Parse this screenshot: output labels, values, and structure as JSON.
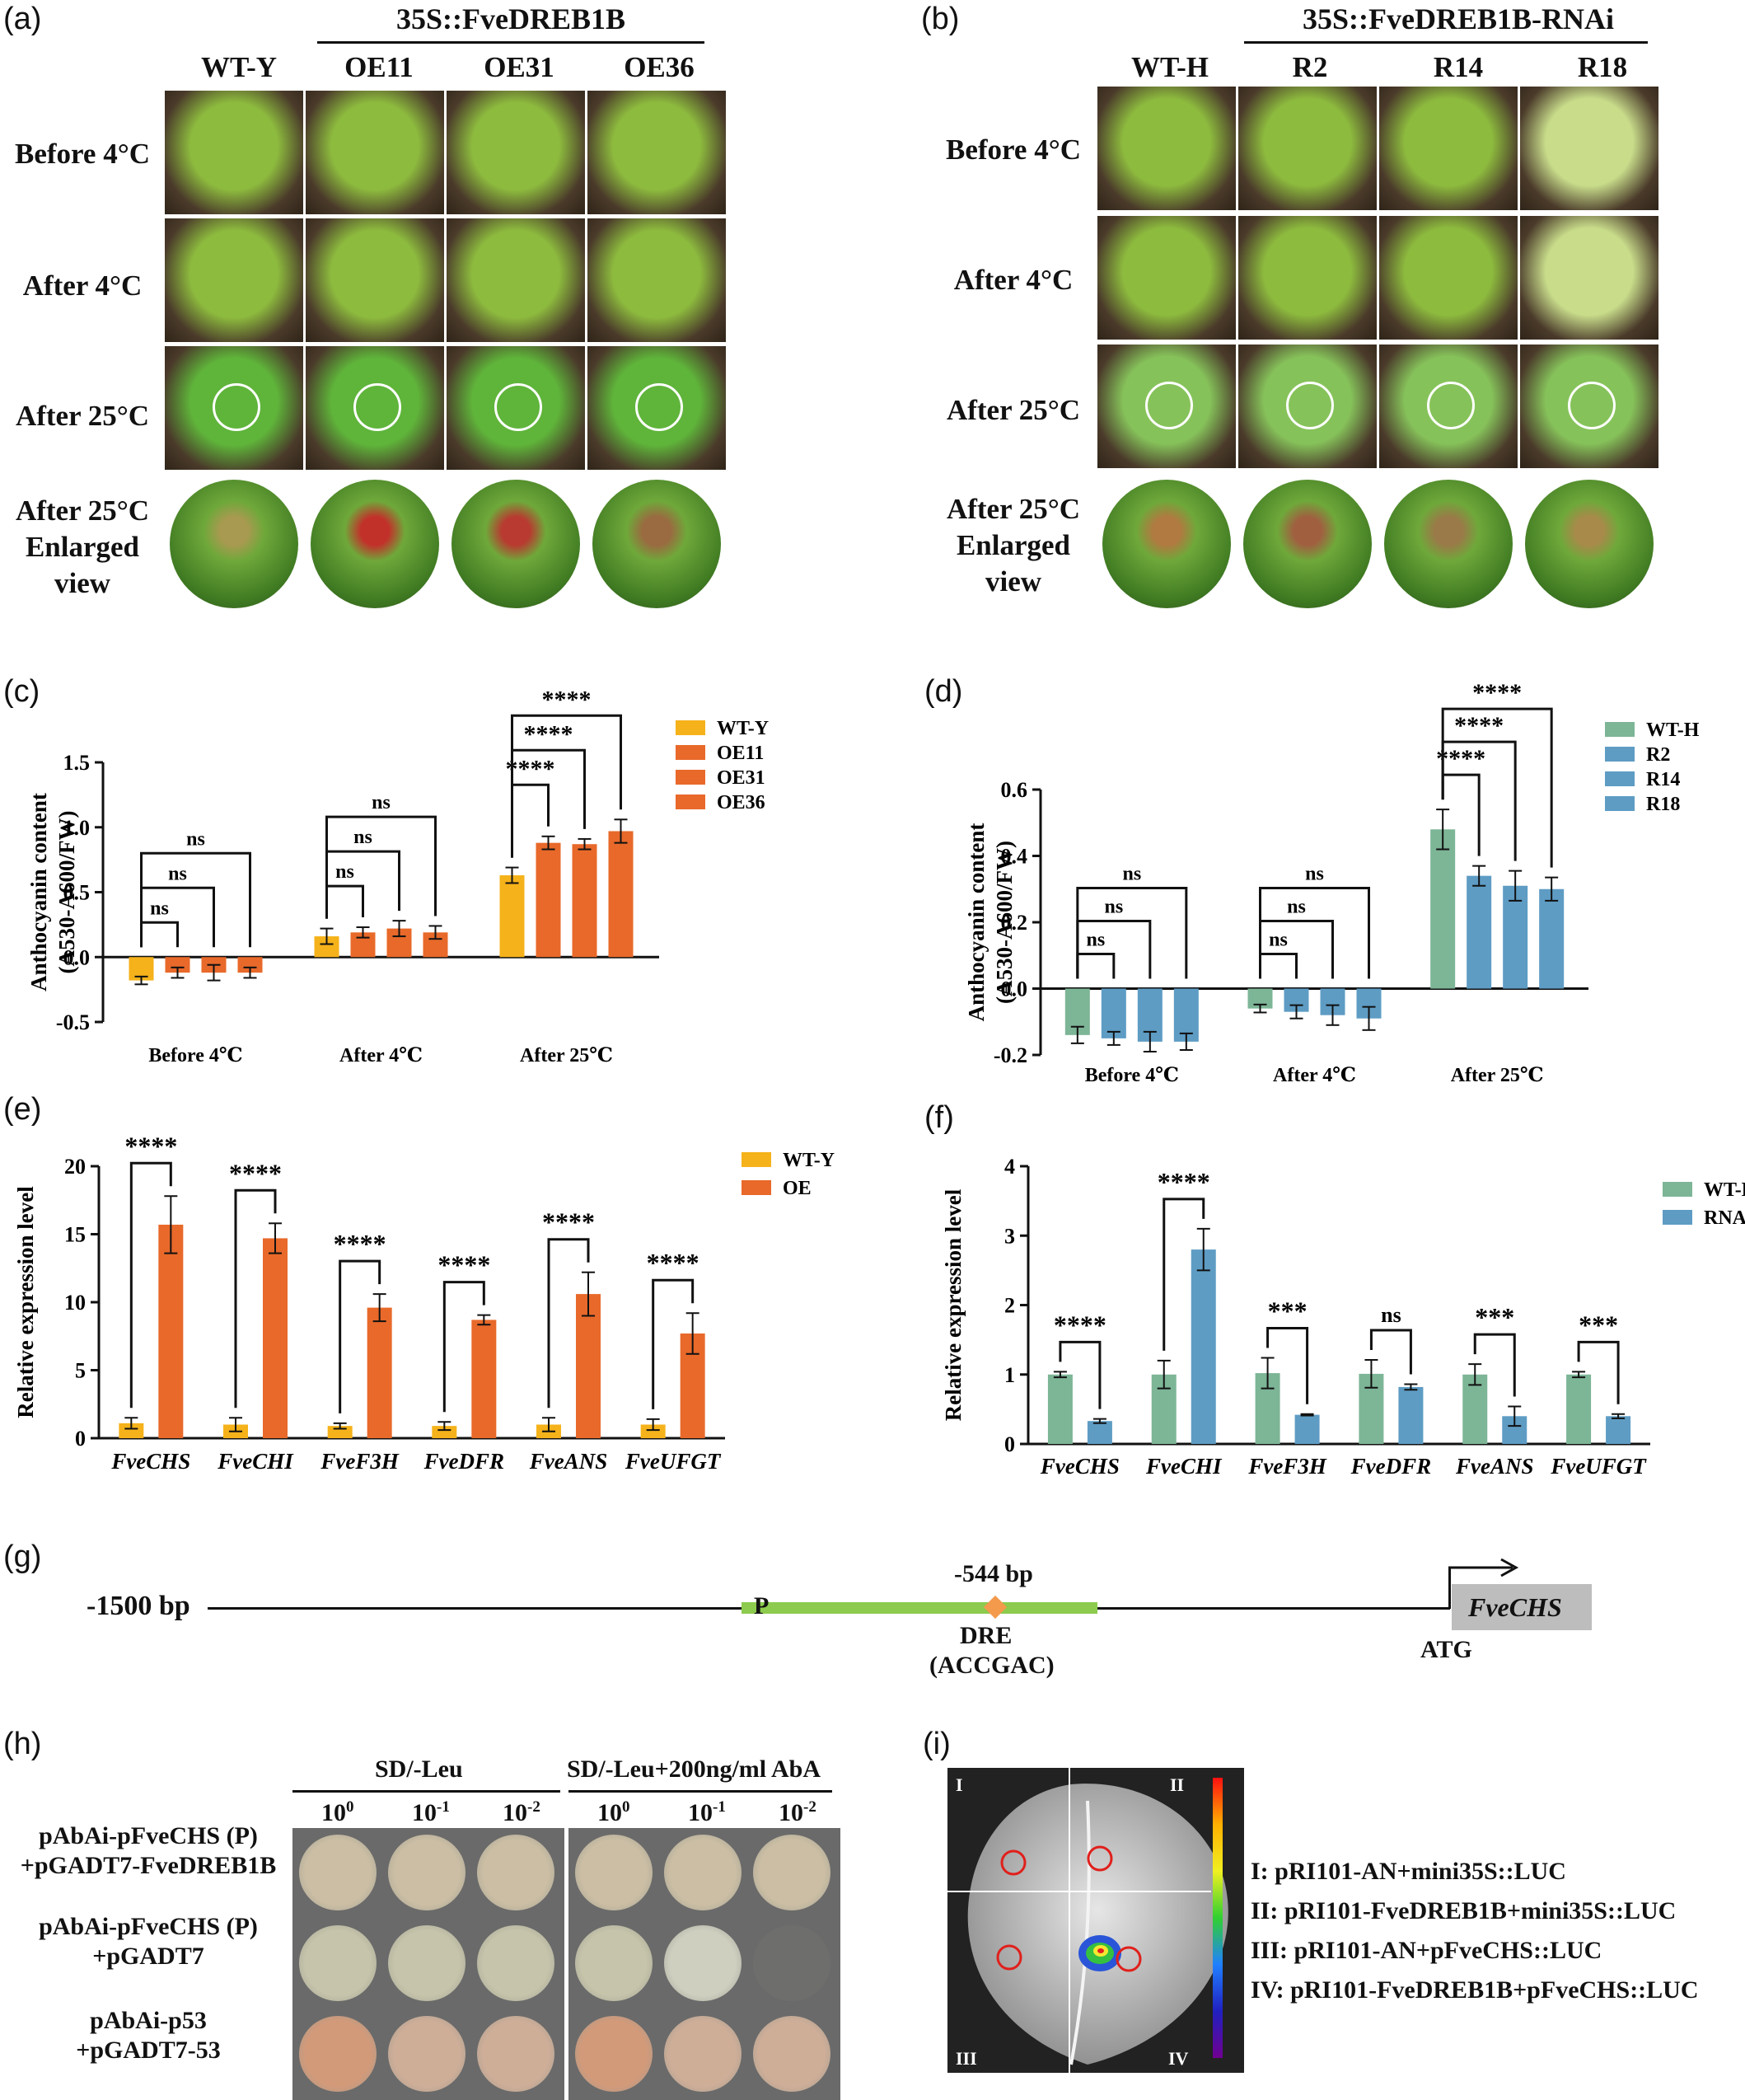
{
  "panels": {
    "a": {
      "label": "(a)",
      "construct": "35S::FveDREB1B",
      "columns": [
        "WT-Y",
        "OE11",
        "OE31",
        "OE36"
      ],
      "rows": [
        "Before 4°C",
        "After 4°C",
        "After 25°C",
        "After 25°C Enlarged view"
      ]
    },
    "b": {
      "label": "(b)",
      "construct": "35S::FveDREB1B-RNAi",
      "columns": [
        "WT-H",
        "R2",
        "R14",
        "R18"
      ],
      "rows": [
        "Before 4°C",
        "After 4°C",
        "After 25°C",
        "After 25°C Enlarged view"
      ]
    },
    "c": {
      "label": "(c)"
    },
    "d": {
      "label": "(d)"
    },
    "e": {
      "label": "(e)"
    },
    "f": {
      "label": "(f)"
    },
    "g": {
      "label": "(g)",
      "left_label": "-1500 bp",
      "p_label": "P",
      "site_label": "-544 bp",
      "dre": "DRE",
      "dre_seq": "(ACCGAC)",
      "atg": "ATG",
      "gene": "FveCHS"
    },
    "h": {
      "label": "(h)",
      "media": [
        "SD/-Leu",
        "SD/-Leu+200ng/ml AbA"
      ],
      "dilutions": [
        "10",
        "10",
        "10"
      ],
      "dilution_exp": [
        "0",
        "-1",
        "-2"
      ],
      "rows": [
        [
          "pAbAi-pFveCHS (P)",
          "+pGADT7-FveDREB1B"
        ],
        [
          "pAbAi-pFveCHS (P)",
          "+pGADT7"
        ],
        [
          "pAbAi-p53",
          "+pGADT7-53"
        ]
      ]
    },
    "i": {
      "label": "(i)",
      "quadrants": [
        "I",
        "II",
        "III",
        "IV"
      ],
      "legend": [
        "I: pRI101-AN+mini35S::LUC",
        "II: pRI101-FveDREB1B+mini35S::LUC",
        "III: pRI101-AN+pFveCHS::LUC",
        "IV: pRI101-FveDREB1B+pFveCHS::LUC"
      ]
    }
  },
  "colors": {
    "wt_y": "#F5B21A",
    "oe": "#E8692A",
    "wt_h": "#7DB597",
    "rnai": "#5E9CC4",
    "leaf": "#7DB83A",
    "green_bar": "#8CCB4E"
  },
  "chart_data": [
    {
      "id": "c",
      "type": "bar",
      "ylabel": "Anthocyanin content (A530-A600/FW)",
      "ylim": [
        -0.5,
        1.5
      ],
      "yticks": [
        "-0.5",
        "0.0",
        "0.5",
        "1.0",
        "1.5"
      ],
      "categories": [
        "Before 4℃",
        "After 4℃",
        "After 25℃"
      ],
      "series": [
        {
          "name": "WT-Y",
          "values": [
            -0.18,
            0.16,
            0.63
          ],
          "errors": [
            0.03,
            0.06,
            0.06
          ]
        },
        {
          "name": "OE11",
          "values": [
            -0.12,
            0.19,
            0.88
          ],
          "errors": [
            0.04,
            0.04,
            0.05
          ]
        },
        {
          "name": "OE31",
          "values": [
            -0.12,
            0.22,
            0.87
          ],
          "errors": [
            0.06,
            0.06,
            0.04
          ]
        },
        {
          "name": "OE36",
          "values": [
            -0.12,
            0.19,
            0.97
          ],
          "errors": [
            0.04,
            0.05,
            0.09
          ]
        }
      ],
      "sig": [
        [
          "ns",
          "ns",
          "ns"
        ],
        [
          "ns",
          "ns",
          "ns"
        ],
        [
          "****",
          "****",
          "****"
        ]
      ]
    },
    {
      "id": "d",
      "type": "bar",
      "ylabel": "Anthocyanin content (A530-A600/FW)",
      "ylim": [
        -0.2,
        0.6
      ],
      "yticks": [
        "-0.2",
        "0.0",
        "0.2",
        "0.4",
        "0.6"
      ],
      "categories": [
        "Before 4℃",
        "After 4℃",
        "After 25℃"
      ],
      "series": [
        {
          "name": "WT-H",
          "values": [
            -0.14,
            -0.06,
            0.48
          ],
          "errors": [
            0.025,
            0.012,
            0.06
          ]
        },
        {
          "name": "R2",
          "values": [
            -0.15,
            -0.07,
            0.34
          ],
          "errors": [
            0.02,
            0.02,
            0.03
          ]
        },
        {
          "name": "R14",
          "values": [
            -0.16,
            -0.08,
            0.31
          ],
          "errors": [
            0.03,
            0.03,
            0.045
          ]
        },
        {
          "name": "R18",
          "values": [
            -0.16,
            -0.09,
            0.3
          ],
          "errors": [
            0.025,
            0.035,
            0.035
          ]
        }
      ],
      "sig": [
        [
          "ns",
          "ns",
          "ns"
        ],
        [
          "ns",
          "ns",
          "ns"
        ],
        [
          "****",
          "****",
          "****"
        ]
      ]
    },
    {
      "id": "e",
      "type": "bar",
      "ylabel": "Relative expression level",
      "ylim": [
        0,
        20
      ],
      "yticks": [
        "0",
        "5",
        "10",
        "15",
        "20"
      ],
      "categories": [
        "FveCHS",
        "FveCHI",
        "FveF3H",
        "FveDFR",
        "FveANS",
        "FveUFGT"
      ],
      "series": [
        {
          "name": "WT-Y",
          "values": [
            1.1,
            1.0,
            0.9,
            0.9,
            1.0,
            1.0
          ],
          "errors": [
            0.4,
            0.5,
            0.2,
            0.3,
            0.5,
            0.4
          ]
        },
        {
          "name": "OE",
          "values": [
            15.7,
            14.7,
            9.6,
            8.7,
            10.6,
            7.7
          ],
          "errors": [
            2.1,
            1.1,
            1.0,
            0.35,
            1.6,
            1.5
          ]
        }
      ],
      "sig": [
        "****",
        "****",
        "****",
        "****",
        "****",
        "****"
      ]
    },
    {
      "id": "f",
      "type": "bar",
      "ylabel": "Relative expression level",
      "ylim": [
        0,
        4
      ],
      "yticks": [
        "0",
        "1",
        "2",
        "3",
        "4"
      ],
      "categories": [
        "FveCHS",
        "FveCHI",
        "FveF3H",
        "FveDFR",
        "FveANS",
        "FveUFGT"
      ],
      "series": [
        {
          "name": "WT-H",
          "values": [
            1.0,
            1.0,
            1.02,
            1.01,
            1.0,
            1.0
          ],
          "errors": [
            0.04,
            0.2,
            0.22,
            0.2,
            0.15,
            0.04
          ]
        },
        {
          "name": "RNAi",
          "values": [
            0.33,
            2.8,
            0.42,
            0.82,
            0.4,
            0.4
          ],
          "errors": [
            0.03,
            0.3,
            0.01,
            0.04,
            0.14,
            0.03
          ]
        }
      ],
      "sig": [
        "****",
        "****",
        "***",
        "ns",
        "***",
        "***"
      ]
    }
  ]
}
